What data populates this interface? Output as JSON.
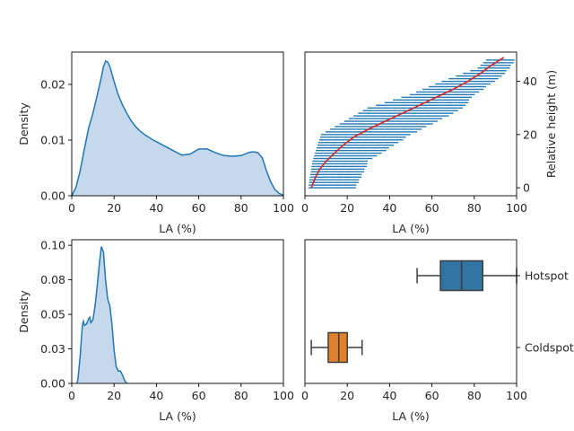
{
  "chart_data": [
    {
      "type": "area",
      "panel": "top-left",
      "xlabel": "LA (%)",
      "ylabel": "Density",
      "xlim": [
        0,
        100
      ],
      "ylim": [
        0,
        0.0258
      ],
      "xticks": [
        0,
        20,
        40,
        60,
        80,
        100
      ],
      "yticks": [
        0.0,
        0.01,
        0.02
      ],
      "ytick_labels": [
        "0.00",
        "0.01",
        "0.02"
      ],
      "color": "#1f77b4",
      "fill": "#c6d9ec",
      "x": [
        0,
        2,
        4,
        6,
        8,
        10,
        12,
        14,
        15,
        16,
        17,
        18,
        20,
        22,
        24,
        26,
        28,
        30,
        32,
        34,
        36,
        38,
        40,
        44,
        48,
        52,
        56,
        60,
        64,
        68,
        72,
        76,
        80,
        84,
        86,
        88,
        90,
        92,
        94,
        96,
        98,
        100
      ],
      "y": [
        0.0,
        0.0015,
        0.0045,
        0.0085,
        0.0122,
        0.0148,
        0.018,
        0.0213,
        0.0232,
        0.0242,
        0.024,
        0.0232,
        0.0205,
        0.0181,
        0.0163,
        0.0148,
        0.0135,
        0.0125,
        0.0117,
        0.0111,
        0.0106,
        0.0101,
        0.0097,
        0.0089,
        0.0081,
        0.0073,
        0.0075,
        0.0084,
        0.0084,
        0.0077,
        0.0072,
        0.0071,
        0.0072,
        0.0078,
        0.0079,
        0.0077,
        0.0068,
        0.0045,
        0.0025,
        0.0011,
        0.0004,
        0.0001
      ]
    },
    {
      "type": "scatter",
      "panel": "top-right",
      "xlabel": "LA (%)",
      "ylabel": "Relative height (m)",
      "xlim": [
        0,
        100
      ],
      "ylim": [
        -3,
        51
      ],
      "xticks": [
        0,
        20,
        40,
        60,
        80,
        100
      ],
      "yticks": [
        0,
        20,
        40
      ],
      "y_axis_side": "right",
      "marker_color": "#1f77b4",
      "fit_color": "#d62728",
      "height_step": 1,
      "height_max": 48,
      "fit_x": [
        3,
        4,
        5,
        7,
        10,
        14,
        18,
        23,
        30,
        38,
        46,
        54,
        62,
        70,
        77,
        83,
        88,
        92,
        94
      ],
      "fit_y": [
        0,
        2,
        4,
        7,
        10,
        13,
        16,
        19,
        22,
        25,
        28,
        31,
        34,
        37,
        40,
        43,
        46,
        48,
        49
      ],
      "band_ranges": [
        {
          "y": 0,
          "min": 2,
          "max": 24
        },
        {
          "y": 10,
          "min": 4,
          "max": 30
        },
        {
          "y": 20,
          "min": 8,
          "max": 50
        },
        {
          "y": 30,
          "min": 30,
          "max": 75
        },
        {
          "y": 35,
          "min": 50,
          "max": 80
        },
        {
          "y": 40,
          "min": 65,
          "max": 90
        },
        {
          "y": 45,
          "min": 82,
          "max": 97
        },
        {
          "y": 48,
          "min": 86,
          "max": 99
        }
      ]
    },
    {
      "type": "area",
      "panel": "bottom-left",
      "xlabel": "LA (%)",
      "ylabel": "Density",
      "xlim": [
        0,
        100
      ],
      "ylim": [
        0,
        0.104
      ],
      "xticks": [
        0,
        20,
        40,
        60,
        80,
        100
      ],
      "yticks": [
        0.0,
        0.025,
        0.05,
        0.075,
        0.1
      ],
      "ytick_labels": [
        "0.00",
        "0.03",
        "0.05",
        "0.08",
        "0.10"
      ],
      "color": "#1f77b4",
      "fill": "#c6d9ec",
      "x": [
        2.5,
        3,
        4,
        5,
        5.5,
        6,
        7,
        8,
        8.5,
        9,
        10,
        11,
        12,
        13,
        14,
        15,
        16,
        17,
        18,
        19,
        20,
        21,
        22,
        23,
        24,
        25,
        26
      ],
      "y": [
        0,
        0.004,
        0.02,
        0.042,
        0.045,
        0.042,
        0.043,
        0.047,
        0.048,
        0.044,
        0.046,
        0.056,
        0.07,
        0.086,
        0.099,
        0.095,
        0.074,
        0.061,
        0.056,
        0.043,
        0.024,
        0.012,
        0.009,
        0.009,
        0.006,
        0.002,
        0
      ]
    },
    {
      "type": "box",
      "panel": "bottom-right",
      "xlabel": "LA (%)",
      "xlim": [
        0,
        100
      ],
      "xticks": [
        0,
        20,
        40,
        60,
        80,
        100
      ],
      "categories": [
        "Hotspot",
        "Coldspot"
      ],
      "boxes": [
        {
          "name": "Hotspot",
          "whisker_low": 53,
          "q1": 64,
          "median": 74,
          "q3": 84,
          "whisker_high": 100,
          "color": "#3274a1"
        },
        {
          "name": "Coldspot",
          "whisker_low": 3,
          "q1": 11,
          "median": 16,
          "q3": 20,
          "whisker_high": 27,
          "color": "#e1812c"
        }
      ]
    }
  ]
}
